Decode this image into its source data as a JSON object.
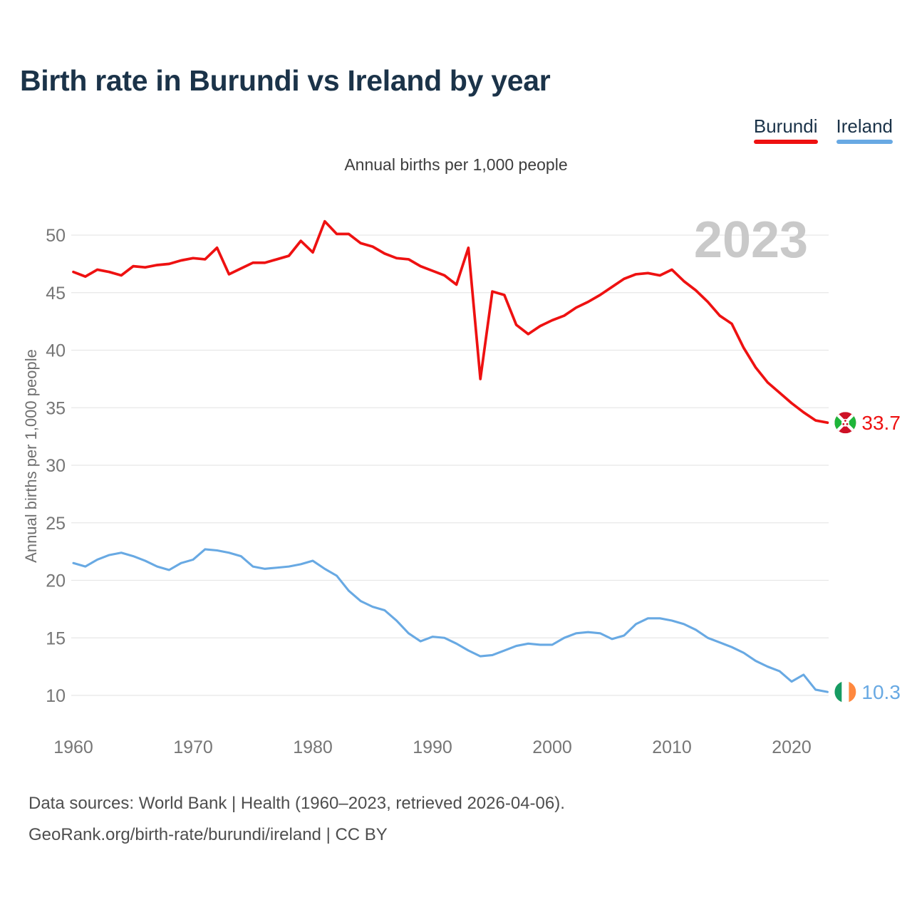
{
  "title": "Birth rate in Burundi vs Ireland by year",
  "subtitle": "Annual births per 1,000 people",
  "y_axis_title": "Annual births per 1,000 people",
  "watermark": "2023",
  "legend": [
    {
      "label": "Burundi",
      "color": "#ee1111"
    },
    {
      "label": "Ireland",
      "color": "#68a9e3"
    }
  ],
  "end_labels": {
    "burundi": "33.7",
    "ireland": "10.3"
  },
  "footer": {
    "line1": "Data sources: World Bank | Health (1960–2023, retrieved 2026-04-06).",
    "line2": "GeoRank.org/birth-rate/burundi/ireland | CC BY"
  },
  "colors": {
    "title_text": "#1b3349",
    "axis_text": "#767676",
    "gridline": "#e7e7e7",
    "watermark": "#c9c9c9",
    "burundi_series": "#ee1111",
    "ireland_series": "#68a9e3"
  },
  "flag_colors": {
    "burundi": {
      "red": "#ce1126",
      "green": "#1eb53a",
      "white": "#ffffff"
    },
    "ireland": {
      "green": "#169b62",
      "white": "#ffffff",
      "orange": "#ff883e"
    }
  },
  "chart_data": {
    "type": "line",
    "title": "Annual births per 1,000 people",
    "xlabel": "",
    "ylabel": "Annual births per 1,000 people",
    "x_range": [
      1960,
      2023
    ],
    "ylim": [
      8.5,
      53
    ],
    "yticks": [
      10,
      15,
      20,
      25,
      30,
      35,
      40,
      45,
      50
    ],
    "xticks": [
      1960,
      1970,
      1980,
      1990,
      2000,
      2010,
      2020
    ],
    "grid": true,
    "legend_position": "top-right",
    "years": [
      1960,
      1961,
      1962,
      1963,
      1964,
      1965,
      1966,
      1967,
      1968,
      1969,
      1970,
      1971,
      1972,
      1973,
      1974,
      1975,
      1976,
      1977,
      1978,
      1979,
      1980,
      1981,
      1982,
      1983,
      1984,
      1985,
      1986,
      1987,
      1988,
      1989,
      1990,
      1991,
      1992,
      1993,
      1994,
      1995,
      1996,
      1997,
      1998,
      1999,
      2000,
      2001,
      2002,
      2003,
      2004,
      2005,
      2006,
      2007,
      2008,
      2009,
      2010,
      2011,
      2012,
      2013,
      2014,
      2015,
      2016,
      2017,
      2018,
      2019,
      2020,
      2021,
      2022,
      2023
    ],
    "series": [
      {
        "name": "Burundi",
        "color": "#ee1111",
        "final_value": 33.7,
        "values": [
          46.8,
          46.4,
          47.0,
          46.8,
          46.5,
          47.3,
          47.2,
          47.4,
          47.5,
          47.8,
          48.0,
          47.9,
          48.9,
          46.6,
          47.1,
          47.6,
          47.6,
          47.9,
          48.2,
          49.5,
          48.5,
          51.2,
          50.1,
          50.1,
          49.3,
          49.0,
          48.4,
          48.0,
          47.9,
          47.3,
          46.9,
          46.5,
          45.7,
          48.9,
          37.5,
          45.1,
          44.8,
          42.2,
          41.4,
          42.1,
          42.6,
          43.0,
          43.7,
          44.2,
          44.8,
          45.5,
          46.2,
          46.6,
          46.7,
          46.5,
          47.0,
          46.0,
          45.2,
          44.2,
          43.0,
          42.3,
          40.2,
          38.5,
          37.2,
          36.3,
          35.4,
          34.6,
          33.9,
          33.7
        ]
      },
      {
        "name": "Ireland",
        "color": "#68a9e3",
        "final_value": 10.3,
        "values": [
          21.5,
          21.2,
          21.8,
          22.2,
          22.4,
          22.1,
          21.7,
          21.2,
          20.9,
          21.5,
          21.8,
          22.7,
          22.6,
          22.4,
          22.1,
          21.2,
          21.0,
          21.1,
          21.2,
          21.4,
          21.7,
          21.0,
          20.4,
          19.1,
          18.2,
          17.7,
          17.4,
          16.5,
          15.4,
          14.7,
          15.1,
          15.0,
          14.5,
          13.9,
          13.4,
          13.5,
          13.9,
          14.3,
          14.5,
          14.4,
          14.4,
          15.0,
          15.4,
          15.5,
          15.4,
          14.9,
          15.2,
          16.2,
          16.7,
          16.7,
          16.5,
          16.2,
          15.7,
          15.0,
          14.6,
          14.2,
          13.7,
          13.0,
          12.5,
          12.1,
          11.2,
          11.8,
          10.5,
          10.3
        ]
      }
    ]
  }
}
